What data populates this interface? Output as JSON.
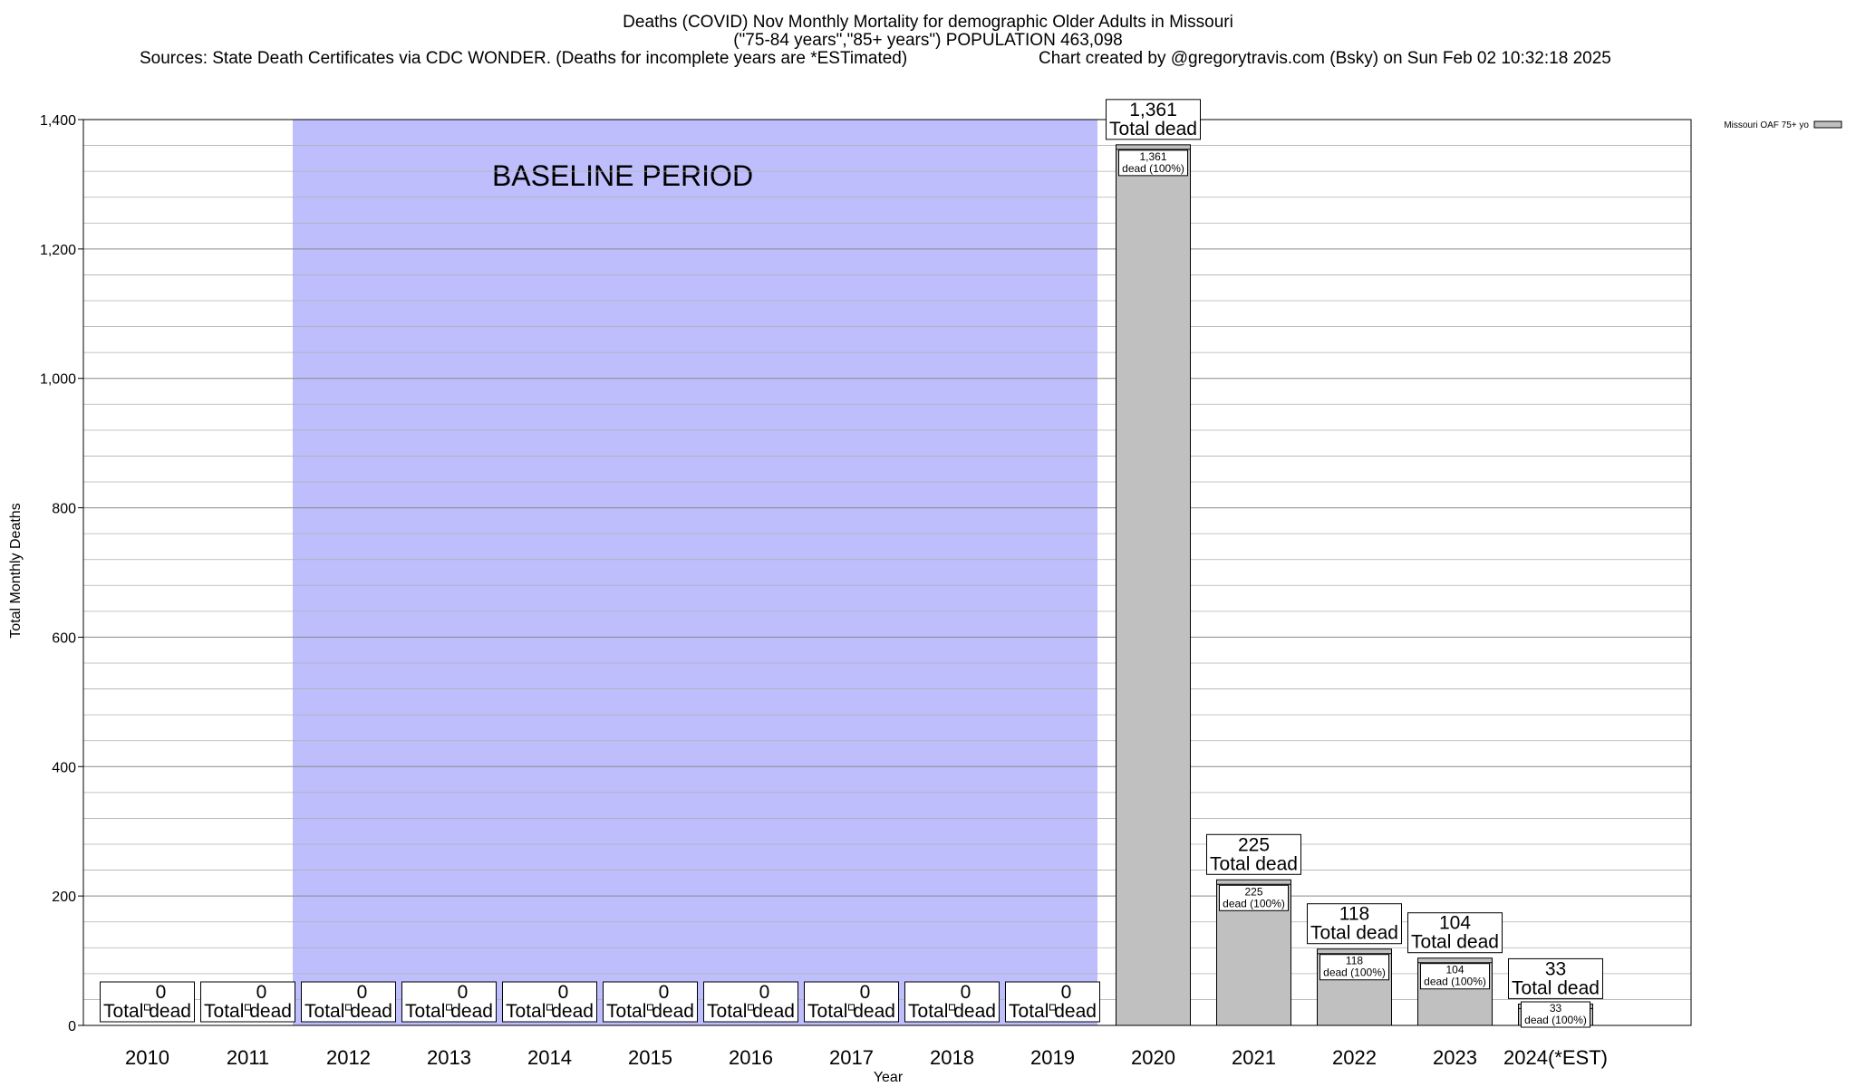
{
  "header": {
    "title_line1": "Deaths (COVID) Nov Monthly Mortality for demographic Older Adults in Missouri",
    "title_line2": "(\"75-84 years\",\"85+ years\") POPULATION 463,098",
    "sources": "Sources: State Death Certificates via CDC WONDER. (Deaths for incomplete years are *ESTimated)",
    "credit": "Chart created by @gregorytravis.com (Bsky) on Sun Feb 02 10:32:18 2025"
  },
  "legend": {
    "label": "Missouri OAF 75+ yo"
  },
  "colors": {
    "bar": "#c0c0c0",
    "baseline": "#bebefd",
    "grid": "#b0b0b0"
  },
  "chart_data": {
    "type": "bar",
    "title": "Deaths (COVID) Nov Monthly Mortality for demographic Older Adults in Missouri",
    "xlabel": "Year",
    "ylabel": "Total Monthly Deaths",
    "ylim": [
      0,
      1400
    ],
    "yticks": [
      "0",
      "200",
      "400",
      "600",
      "800",
      "1,000",
      "1,200",
      "1,400"
    ],
    "ytick_values": [
      0,
      200,
      400,
      600,
      800,
      1000,
      1200,
      1400
    ],
    "grid": true,
    "legend_position": "top-right",
    "categories": [
      "2010",
      "2011",
      "2012",
      "2013",
      "2014",
      "2015",
      "2016",
      "2017",
      "2018",
      "2019",
      "2020",
      "2021",
      "2022",
      "2023",
      "2024(*EST)"
    ],
    "series": [
      {
        "name": "Missouri OAF 75+ yo",
        "values": [
          0,
          0,
          0,
          0,
          0,
          0,
          0,
          0,
          0,
          0,
          1361,
          225,
          118,
          104,
          33
        ]
      }
    ],
    "value_labels": [
      "0",
      "0",
      "0",
      "0",
      "0",
      "0",
      "0",
      "0",
      "0",
      "0",
      "1,361",
      "225",
      "118",
      "104",
      "33"
    ],
    "total_label": "Total dead",
    "inner_label_suffix": "dead (100%)",
    "baseline_region": {
      "label": "BASELINE PERIOD",
      "from": "2012",
      "to": "2019"
    }
  }
}
